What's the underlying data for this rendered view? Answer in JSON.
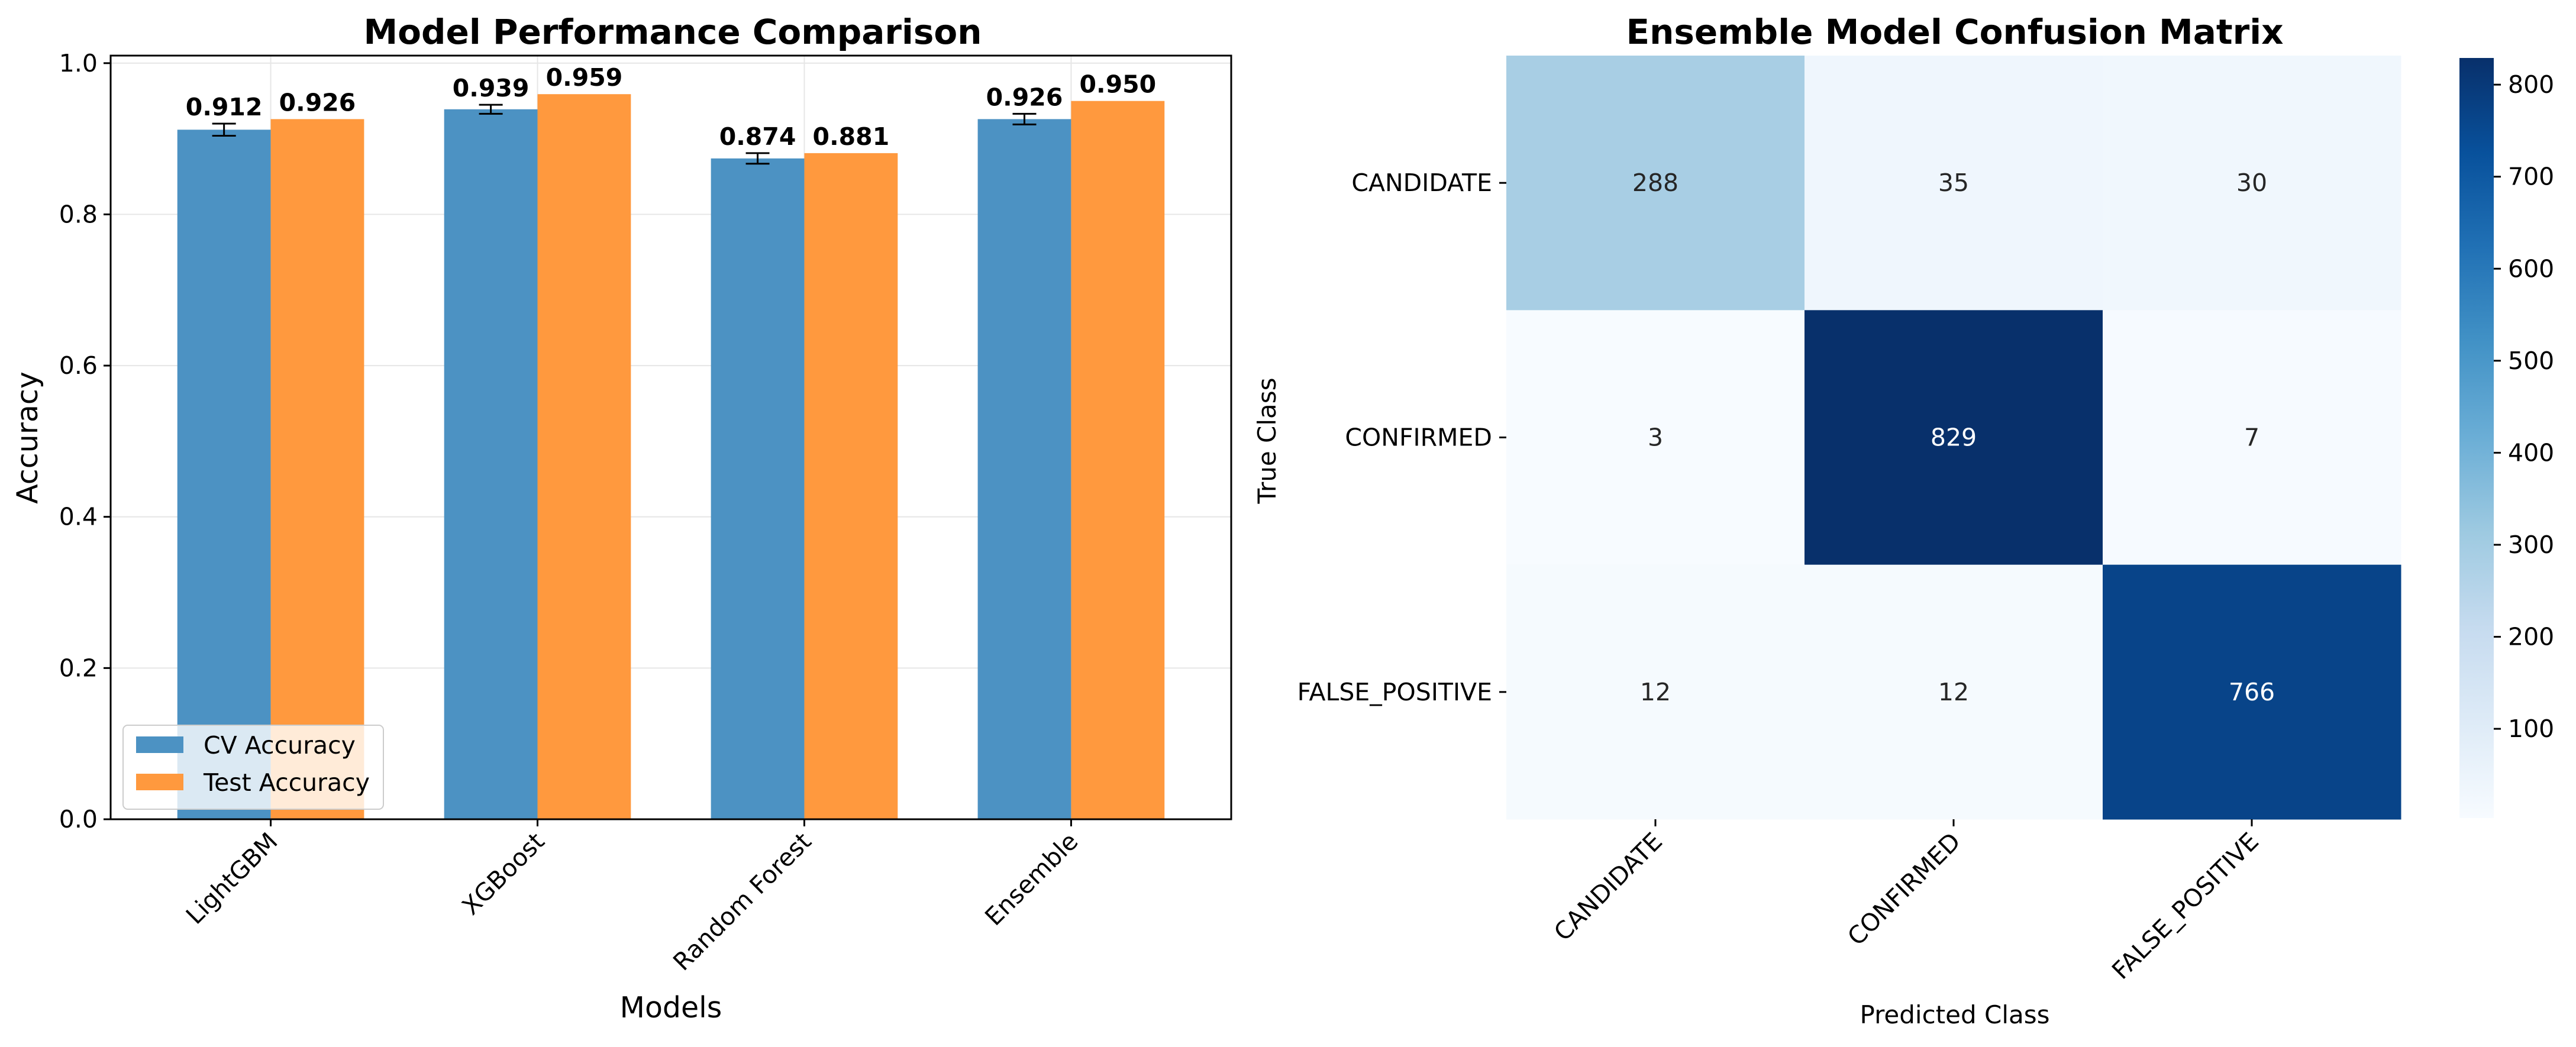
{
  "chart_data": [
    {
      "type": "bar",
      "title": "Model Performance Comparison",
      "xlabel": "Models",
      "ylabel": "Accuracy",
      "categories": [
        "LightGBM",
        "XGBoost",
        "Random Forest",
        "Ensemble"
      ],
      "series": [
        {
          "name": "CV Accuracy",
          "values": [
            0.912,
            0.939,
            0.874,
            0.926
          ],
          "error": [
            0.008,
            0.006,
            0.007,
            0.007
          ],
          "color": "#4c92c3",
          "labels": [
            "0.912",
            "0.939",
            "0.874",
            "0.926"
          ]
        },
        {
          "name": "Test Accuracy",
          "values": [
            0.926,
            0.959,
            0.881,
            0.95
          ],
          "color": "#ff993e",
          "labels": [
            "0.926",
            "0.959",
            "0.881",
            "0.950"
          ]
        }
      ],
      "ylim": [
        0,
        1.01
      ],
      "yticks": [
        "0.0",
        "0.2",
        "0.4",
        "0.6",
        "0.8",
        "1.0"
      ],
      "ytick_values": [
        0,
        0.2,
        0.4,
        0.6,
        0.8,
        1.0
      ],
      "grid": true,
      "legend": "lower-left"
    },
    {
      "type": "heatmap",
      "title": "Ensemble Model Confusion Matrix",
      "xlabel": "Predicted Class",
      "ylabel": "True Class",
      "x_categories": [
        "CANDIDATE",
        "CONFIRMED",
        "FALSE_POSITIVE"
      ],
      "y_categories": [
        "CANDIDATE",
        "CONFIRMED",
        "FALSE_POSITIVE"
      ],
      "values": [
        [
          288,
          35,
          30
        ],
        [
          3,
          829,
          7
        ],
        [
          12,
          12,
          766
        ]
      ],
      "colormap": "Blues",
      "colorbar_range": [
        3,
        829
      ],
      "colorbar_ticks": [
        "100",
        "200",
        "300",
        "400",
        "500",
        "600",
        "700",
        "800"
      ],
      "colorbar_tick_values": [
        100,
        200,
        300,
        400,
        500,
        600,
        700,
        800
      ]
    }
  ]
}
